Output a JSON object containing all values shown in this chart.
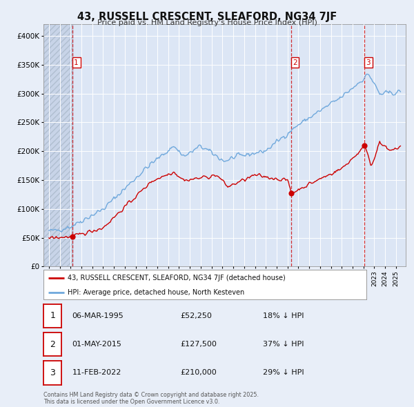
{
  "title": "43, RUSSELL CRESCENT, SLEAFORD, NG34 7JF",
  "subtitle": "Price paid vs. HM Land Registry's House Price Index (HPI)",
  "background_color": "#e8eef8",
  "plot_bg_color": "#dce6f5",
  "grid_color": "#ffffff",
  "red_line_label": "43, RUSSELL CRESCENT, SLEAFORD, NG34 7JF (detached house)",
  "blue_line_label": "HPI: Average price, detached house, North Kesteven",
  "footer": "Contains HM Land Registry data © Crown copyright and database right 2025.\nThis data is licensed under the Open Government Licence v3.0.",
  "sale_dates_display": [
    "06-MAR-1995",
    "01-MAY-2015",
    "11-FEB-2022"
  ],
  "sale_prices_display": [
    "£52,250",
    "£127,500",
    "£210,000"
  ],
  "sale_pcts_display": [
    "18% ↓ HPI",
    "37% ↓ HPI",
    "29% ↓ HPI"
  ],
  "sale_prices": [
    52250,
    127500,
    210000
  ],
  "ylim": [
    0,
    420000
  ],
  "yticks": [
    0,
    50000,
    100000,
    150000,
    200000,
    250000,
    300000,
    350000,
    400000
  ],
  "ytick_labels": [
    "£0",
    "£50K",
    "£100K",
    "£150K",
    "£200K",
    "£250K",
    "£300K",
    "£350K",
    "£400K"
  ],
  "red_color": "#cc0000",
  "blue_color": "#6fa8dc",
  "sale_t": [
    1995.167,
    2015.333,
    2022.083
  ],
  "xmin": 1992.5,
  "xmax": 2025.9
}
